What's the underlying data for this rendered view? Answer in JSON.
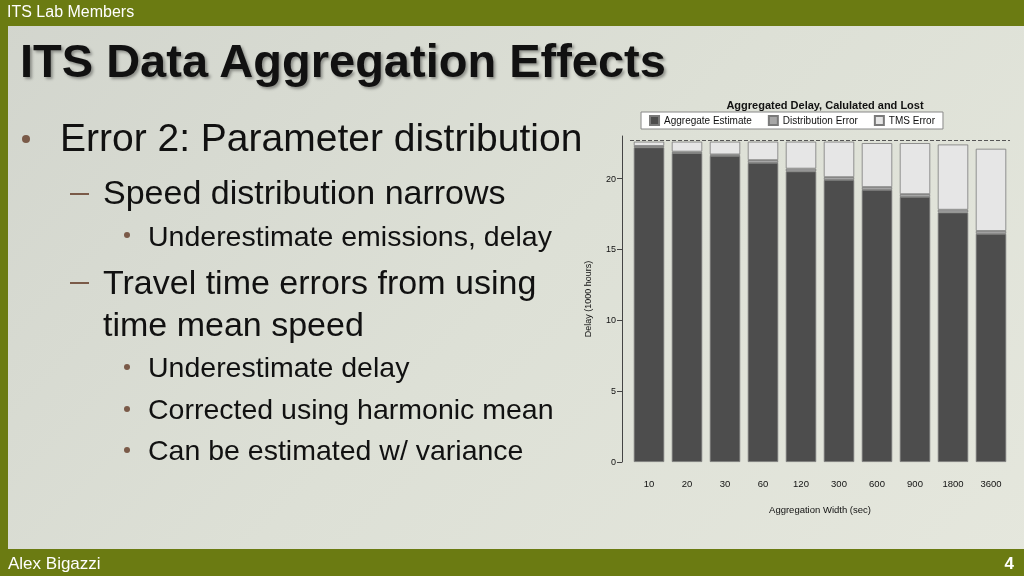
{
  "chart_data": {
    "type": "bar",
    "title": "Aggregated Delay, Calulated and Lost",
    "xlabel": "Aggregation Width (sec)",
    "ylabel": "Delay (1000 hours)",
    "categories": [
      "10",
      "20",
      "30",
      "60",
      "120",
      "300",
      "600",
      "900",
      "1800",
      "3600"
    ],
    "series": [
      {
        "name": "Aggregate Estimate",
        "color": "#4d4d4d",
        "values": [
          22.2,
          21.8,
          21.6,
          21.1,
          20.5,
          19.9,
          19.2,
          18.7,
          17.6,
          16.1
        ]
      },
      {
        "name": "Distribution Error",
        "color": "#a6a6a6",
        "values": [
          0.1,
          0.1,
          0.1,
          0.2,
          0.2,
          0.2,
          0.2,
          0.2,
          0.2,
          0.2
        ]
      },
      {
        "name": "TMS Error",
        "color": "#e6e6e6",
        "values": [
          0.3,
          0.7,
          0.9,
          1.3,
          1.9,
          2.5,
          3.1,
          3.6,
          4.6,
          5.8
        ]
      }
    ],
    "stacked": true,
    "ylim": [
      0,
      23
    ],
    "yticks": [
      0,
      5,
      10,
      15,
      20
    ],
    "legend": "top",
    "ref_lines": [
      {
        "axis": "y",
        "value": 22.7,
        "color": "#555555",
        "line_style": "dashed"
      }
    ],
    "annotations": [
      "ITS Lab Members",
      "ITS Data Aggregation Effects",
      "Error 2: Parameter distribution",
      "Speed distribution narrows",
      "Underestimate emissions, delay",
      "Travel time errors from using time mean speed",
      "Underestimate delay",
      "Corrected using harmonic mean",
      "Can be estimated w/ variance",
      "Alex Bigazzi",
      "4"
    ]
  }
}
